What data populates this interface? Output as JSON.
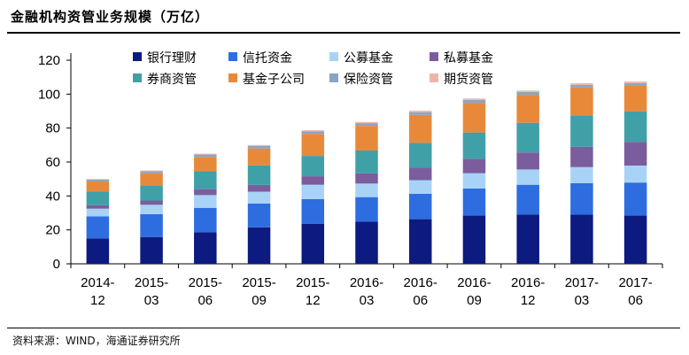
{
  "header": {
    "title": "金融机构资管业务规模（万亿）"
  },
  "footer": {
    "source": "资料来源：WIND，海通证券研究所"
  },
  "chart_data": {
    "type": "bar",
    "stacked": true,
    "title": "金融机构资管业务规模（万亿）",
    "xlabel": "",
    "ylabel": "",
    "ylim": [
      0,
      120
    ],
    "yticks": [
      0,
      20,
      40,
      60,
      80,
      100,
      120
    ],
    "grid": false,
    "legend_position": "top",
    "categories": [
      [
        "2014-",
        "12"
      ],
      [
        "2015-",
        "03"
      ],
      [
        "2015-",
        "06"
      ],
      [
        "2015-",
        "09"
      ],
      [
        "2015-",
        "12"
      ],
      [
        "2016-",
        "03"
      ],
      [
        "2016-",
        "06"
      ],
      [
        "2016-",
        "09"
      ],
      [
        "2016-",
        "12"
      ],
      [
        "2017-",
        "03"
      ],
      [
        "2017-",
        "06"
      ]
    ],
    "series": [
      {
        "name": "银行理财",
        "color": "#0d1a80",
        "values": [
          15.0,
          15.8,
          18.5,
          21.5,
          23.5,
          24.8,
          26.3,
          28.4,
          29.1,
          29.0,
          28.4
        ]
      },
      {
        "name": "信托资金",
        "color": "#2d6de0",
        "values": [
          13.0,
          13.5,
          14.5,
          14.0,
          14.6,
          14.5,
          15.0,
          16.0,
          17.5,
          18.5,
          19.5
        ]
      },
      {
        "name": "公募基金",
        "color": "#a8d3f7",
        "values": [
          4.5,
          5.5,
          7.5,
          7.0,
          8.5,
          8.0,
          8.0,
          9.0,
          9.0,
          9.5,
          10.0
        ]
      },
      {
        "name": "私募基金",
        "color": "#7b5d9e",
        "values": [
          2.0,
          2.5,
          3.5,
          4.0,
          5.0,
          6.0,
          7.5,
          8.5,
          10.0,
          12.0,
          14.0
        ]
      },
      {
        "name": "券商资管",
        "color": "#3fa0a8",
        "values": [
          8.0,
          9.0,
          10.5,
          11.5,
          12.0,
          13.5,
          14.5,
          15.5,
          17.5,
          18.5,
          18.0
        ]
      },
      {
        "name": "基金子公司",
        "color": "#e8893a",
        "values": [
          6.0,
          7.0,
          8.5,
          10.0,
          13.0,
          14.5,
          16.5,
          17.5,
          16.5,
          16.5,
          15.0
        ]
      },
      {
        "name": "保险资管",
        "color": "#8ca4c4",
        "values": [
          1.2,
          1.3,
          1.4,
          1.4,
          1.5,
          1.6,
          1.6,
          1.6,
          1.6,
          1.5,
          1.5
        ]
      },
      {
        "name": "期货资管",
        "color": "#ebb7a8",
        "values": [
          0.3,
          0.4,
          0.5,
          0.6,
          0.6,
          0.7,
          0.8,
          0.9,
          0.9,
          0.9,
          1.0
        ]
      }
    ]
  }
}
